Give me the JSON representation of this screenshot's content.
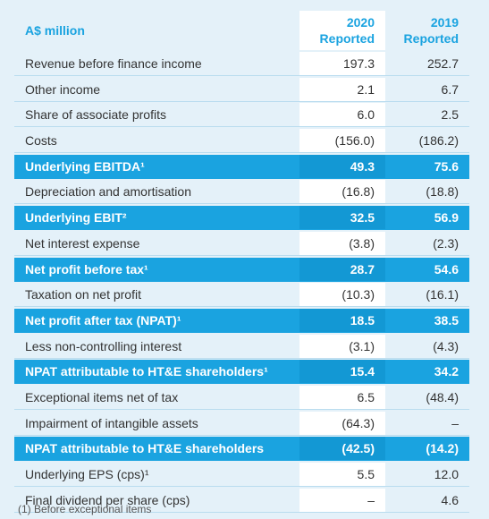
{
  "header": {
    "label": "A$ million",
    "col1_year": "2020",
    "col1_sub": "Reported",
    "col2_year": "2019",
    "col2_sub": "Reported"
  },
  "rows": [
    {
      "label": "Revenue before finance income",
      "v2020": "197.3",
      "v2019": "252.7",
      "highlight": false
    },
    {
      "label": "Other income",
      "v2020": "2.1",
      "v2019": "6.7",
      "highlight": false
    },
    {
      "label": "Share of associate profits",
      "v2020": "6.0",
      "v2019": "2.5",
      "highlight": false
    },
    {
      "label": "Costs",
      "v2020": "(156.0)",
      "v2019": "(186.2)",
      "highlight": false
    },
    {
      "label": "Underlying EBITDA¹",
      "v2020": "49.3",
      "v2019": "75.6",
      "highlight": true
    },
    {
      "label": "Depreciation and amortisation",
      "v2020": "(16.8)",
      "v2019": "(18.8)",
      "highlight": false
    },
    {
      "label": "Underlying EBIT²",
      "v2020": "32.5",
      "v2019": "56.9",
      "highlight": true
    },
    {
      "label": "Net interest expense",
      "v2020": "(3.8)",
      "v2019": "(2.3)",
      "highlight": false
    },
    {
      "label": "Net profit before tax¹",
      "v2020": "28.7",
      "v2019": "54.6",
      "highlight": true
    },
    {
      "label": "Taxation on net profit",
      "v2020": "(10.3)",
      "v2019": "(16.1)",
      "highlight": false
    },
    {
      "label": "Net profit after tax (NPAT)¹",
      "v2020": "18.5",
      "v2019": "38.5",
      "highlight": true
    },
    {
      "label": "Less non-controlling interest",
      "v2020": "(3.1)",
      "v2019": "(4.3)",
      "highlight": false
    },
    {
      "label": "NPAT attributable to HT&E shareholders¹",
      "v2020": "15.4",
      "v2019": "34.2",
      "highlight": true
    },
    {
      "label": "Exceptional items net of tax",
      "v2020": "6.5",
      "v2019": "(48.4)",
      "highlight": false
    },
    {
      "label": "Impairment of intangible assets",
      "v2020": "(64.3)",
      "v2019": "–",
      "highlight": false
    },
    {
      "label": "NPAT attributable to HT&E shareholders",
      "v2020": "(42.5)",
      "v2019": "(14.2)",
      "highlight": true
    },
    {
      "label": "Underlying EPS (cps)¹",
      "v2020": "5.5",
      "v2019": "12.0",
      "highlight": false
    },
    {
      "label": "Final dividend per share (cps)",
      "v2020": "–",
      "v2019": "4.6",
      "highlight": false
    }
  ],
  "footnote": "(1)   Before exceptional items",
  "colors": {
    "accent": "#1aa3e0",
    "background": "#e4f1f9"
  }
}
